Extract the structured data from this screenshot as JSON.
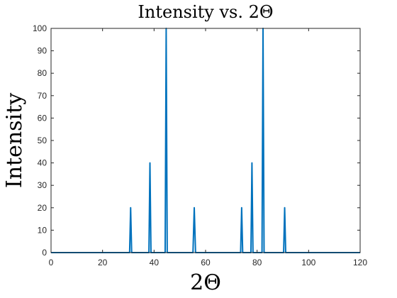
{
  "chart_data": {
    "type": "line",
    "title": "Intensity vs. 2Θ",
    "xlabel": "2Θ",
    "ylabel": "Intensity",
    "xlim": [
      0,
      120
    ],
    "ylim": [
      0,
      100
    ],
    "xticks": [
      "0",
      "20",
      "40",
      "60",
      "80",
      "100",
      "120"
    ],
    "yticks": [
      "0",
      "10",
      "20",
      "30",
      "40",
      "50",
      "60",
      "70",
      "80",
      "90",
      "100"
    ],
    "grid": false,
    "line_color": "#0072BD",
    "series": [
      {
        "x": [
          0,
          30.5,
          30.9,
          31.3,
          38.0,
          38.4,
          38.8,
          44.3,
          44.7,
          45.1,
          55.1,
          55.6,
          56.1,
          73.6,
          74.0,
          74.4,
          77.6,
          78.0,
          78.4,
          81.9,
          82.3,
          82.7,
          90.3,
          90.7,
          91.1,
          120
        ],
        "y": [
          0,
          0,
          20,
          0,
          0,
          40,
          0,
          0,
          100,
          0,
          0,
          20,
          0,
          0,
          20,
          0,
          0,
          40,
          0,
          0,
          100,
          0,
          0,
          20,
          0,
          0
        ]
      }
    ]
  }
}
